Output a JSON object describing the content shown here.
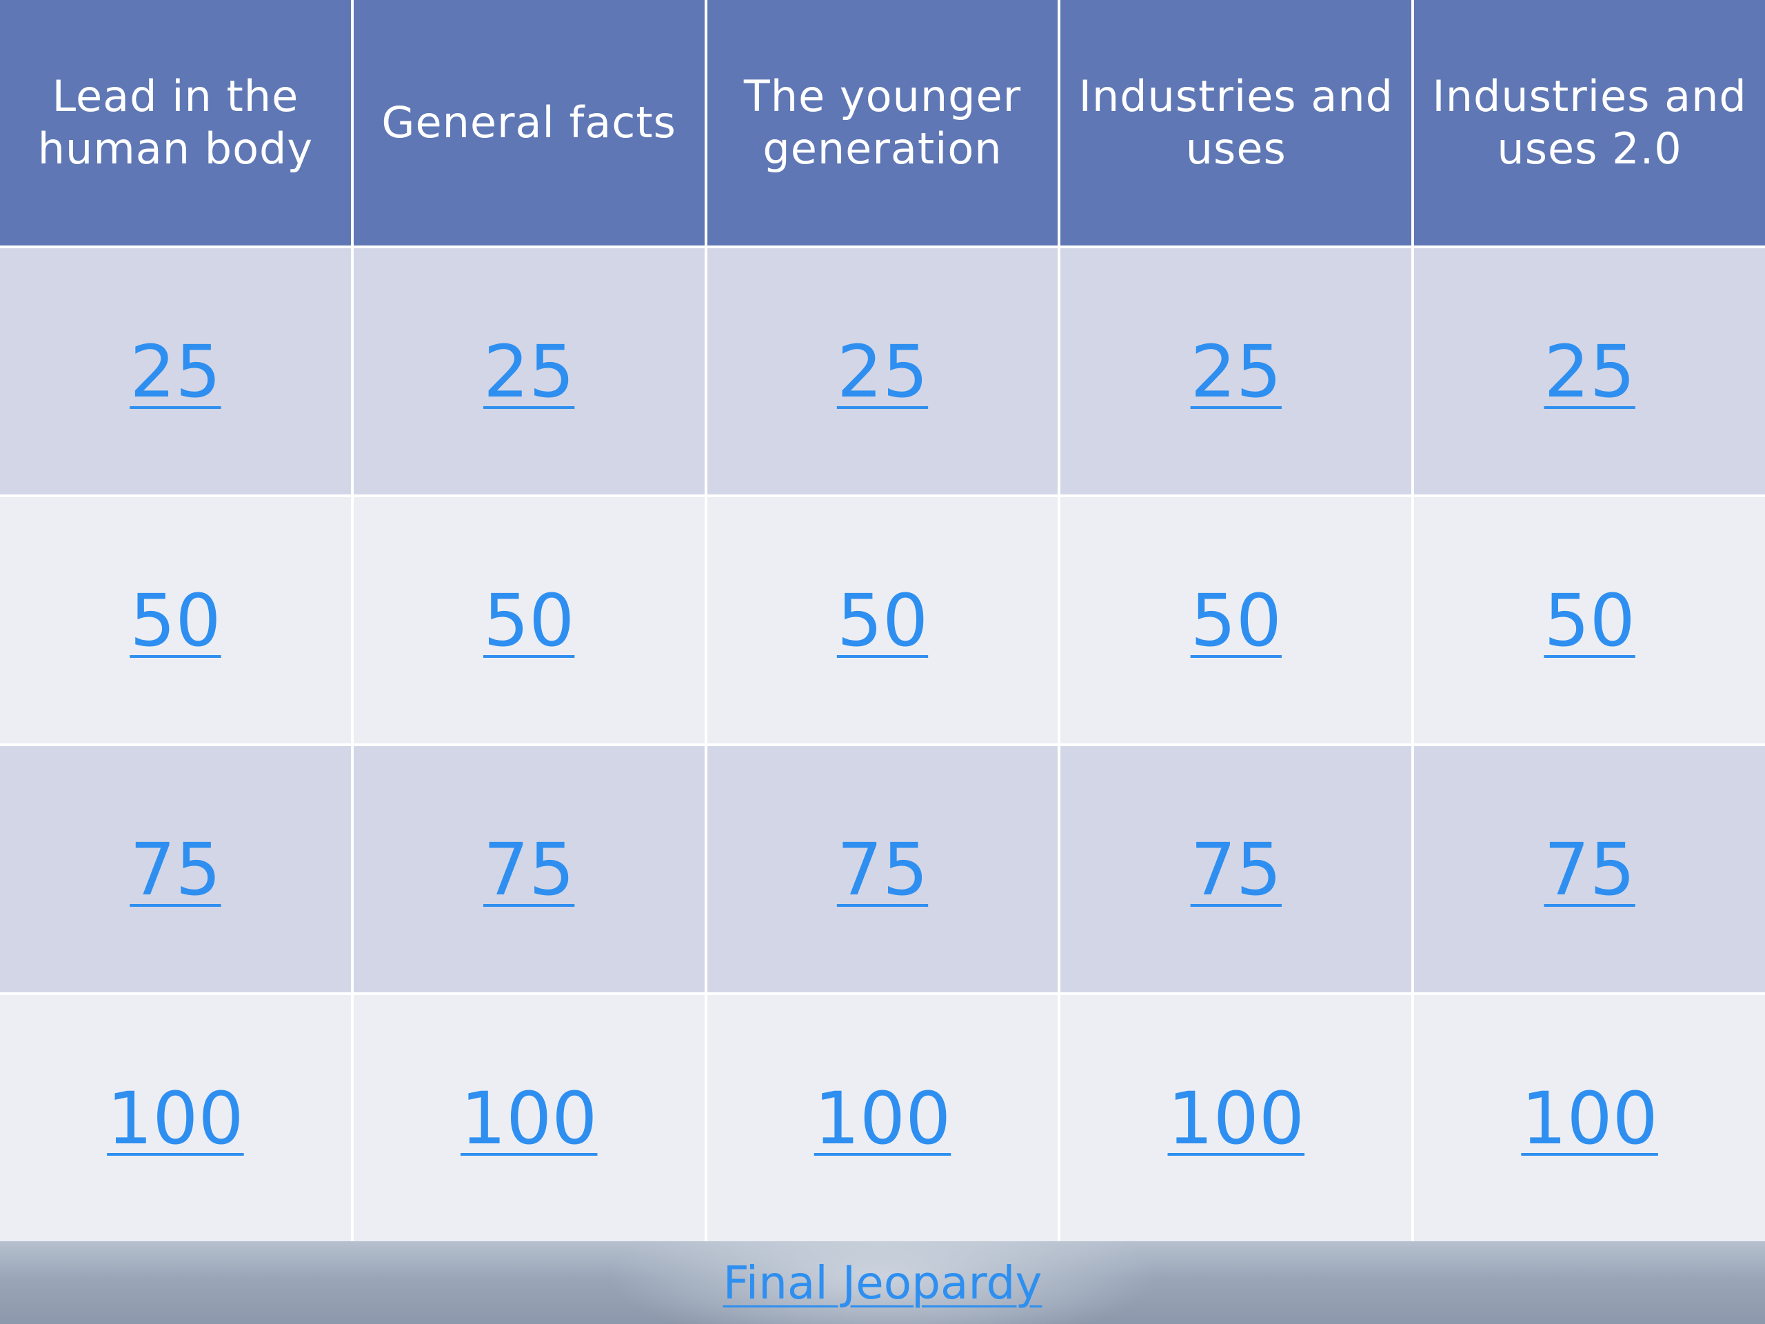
{
  "board": {
    "categories": [
      "Lead in the human body",
      "General facts",
      "The younger generation",
      "Industries and uses",
      "Industries and uses 2.0"
    ],
    "rows": [
      [
        "25",
        "25",
        "25",
        "25",
        "25"
      ],
      [
        "50",
        "50",
        "50",
        "50",
        "50"
      ],
      [
        "75",
        "75",
        "75",
        "75",
        "75"
      ],
      [
        "100",
        "100",
        "100",
        "100",
        "100"
      ]
    ]
  },
  "footer": {
    "final_label": "Final Jeopardy"
  },
  "colors": {
    "header_bg": "#5f77b4",
    "row_odd_bg": "#d3d6e6",
    "row_even_bg": "#eceef3",
    "link": "#2e8ff0"
  }
}
